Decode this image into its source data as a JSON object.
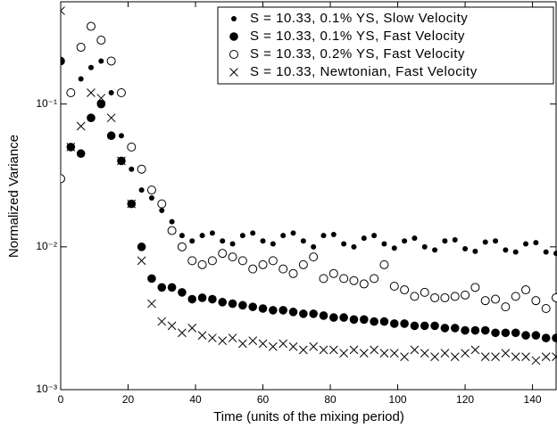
{
  "chart_data": {
    "type": "scatter",
    "x_label": "Time (units of the mixing period)",
    "y_label": "Normalized Variance",
    "x": [
      0,
      3,
      6,
      9,
      12,
      15,
      18,
      21,
      24,
      27,
      30,
      33,
      36,
      39,
      42,
      45,
      48,
      51,
      54,
      57,
      60,
      63,
      66,
      69,
      72,
      75,
      78,
      81,
      84,
      87,
      90,
      93,
      96,
      99,
      102,
      105,
      108,
      111,
      114,
      117,
      120,
      123,
      126,
      129,
      132,
      135,
      138,
      141,
      144,
      147
    ],
    "xlim": [
      0,
      147
    ],
    "xticks": [
      0,
      20,
      40,
      60,
      80,
      100,
      120,
      140
    ],
    "ylim": [
      0.001,
      0.52
    ],
    "log_y": true,
    "yticks": [
      {
        "value": 0.001,
        "label": "10⁻³"
      },
      {
        "value": 0.01,
        "label": "10⁻²"
      },
      {
        "value": 0.1,
        "label": "10⁻¹"
      }
    ],
    "legend_position": "upper right",
    "series": [
      {
        "name": "S =  10.33, 0.1% YS, Slow Velocity",
        "marker": "dot",
        "color": "#000000",
        "values": [
          0.2,
          0.12,
          0.15,
          0.18,
          0.2,
          0.12,
          0.06,
          0.035,
          0.025,
          0.022,
          0.018,
          0.015,
          0.012,
          0.011,
          0.012,
          0.0125,
          0.011,
          0.0105,
          0.012,
          0.0125,
          0.011,
          0.0105,
          0.012,
          0.0125,
          0.011,
          0.01,
          0.012,
          0.0122,
          0.0105,
          0.01,
          0.0115,
          0.012,
          0.0105,
          0.0098,
          0.011,
          0.0115,
          0.01,
          0.0095,
          0.011,
          0.0112,
          0.0097,
          0.0093,
          0.0108,
          0.011,
          0.0095,
          0.0092,
          0.0105,
          0.0107,
          0.0092,
          0.009
        ]
      },
      {
        "name": "S =  10.33, 0.1% YS, Fast Velocity",
        "marker": "disc",
        "color": "#000000",
        "values": [
          0.2,
          0.05,
          0.045,
          0.08,
          0.1,
          0.06,
          0.04,
          0.02,
          0.01,
          0.006,
          0.0052,
          0.0052,
          0.0048,
          0.0043,
          0.0044,
          0.0043,
          0.0041,
          0.004,
          0.0039,
          0.0038,
          0.0037,
          0.0036,
          0.0036,
          0.0035,
          0.0034,
          0.0034,
          0.0033,
          0.0032,
          0.0032,
          0.0031,
          0.0031,
          0.003,
          0.003,
          0.0029,
          0.0029,
          0.0028,
          0.0028,
          0.0028,
          0.0027,
          0.0027,
          0.0026,
          0.0026,
          0.0026,
          0.0025,
          0.0025,
          0.0025,
          0.0024,
          0.0024,
          0.0023,
          0.0023
        ]
      },
      {
        "name": "S =  10.33, 0.2% YS, Fast Velocity",
        "marker": "circle",
        "color": "#000000",
        "values": [
          0.03,
          0.12,
          0.25,
          0.35,
          0.28,
          0.2,
          0.12,
          0.05,
          0.035,
          0.025,
          0.02,
          0.013,
          0.01,
          0.008,
          0.0075,
          0.008,
          0.009,
          0.0085,
          0.008,
          0.007,
          0.0075,
          0.008,
          0.007,
          0.0065,
          0.0075,
          0.0085,
          0.006,
          0.0065,
          0.006,
          0.0058,
          0.0055,
          0.006,
          0.0075,
          0.0053,
          0.005,
          0.0045,
          0.0048,
          0.0044,
          0.0044,
          0.0045,
          0.0046,
          0.0052,
          0.0042,
          0.0043,
          0.0038,
          0.0045,
          0.005,
          0.0042,
          0.0037,
          0.0044
        ]
      },
      {
        "name": "S =  10.33, Newtonian, Fast Velocity",
        "marker": "cross",
        "color": "#000000",
        "values": [
          0.45,
          0.05,
          0.07,
          0.12,
          0.11,
          0.08,
          0.04,
          0.02,
          0.008,
          0.004,
          0.003,
          0.0028,
          0.0025,
          0.0027,
          0.0024,
          0.0023,
          0.0022,
          0.0023,
          0.0021,
          0.0022,
          0.0021,
          0.002,
          0.0021,
          0.002,
          0.0019,
          0.002,
          0.0019,
          0.0019,
          0.0018,
          0.0019,
          0.0018,
          0.0019,
          0.0018,
          0.0018,
          0.0017,
          0.0019,
          0.0018,
          0.0017,
          0.0018,
          0.0017,
          0.0018,
          0.0019,
          0.0017,
          0.0017,
          0.0018,
          0.0017,
          0.0017,
          0.0016,
          0.0017,
          0.0017
        ]
      }
    ]
  }
}
